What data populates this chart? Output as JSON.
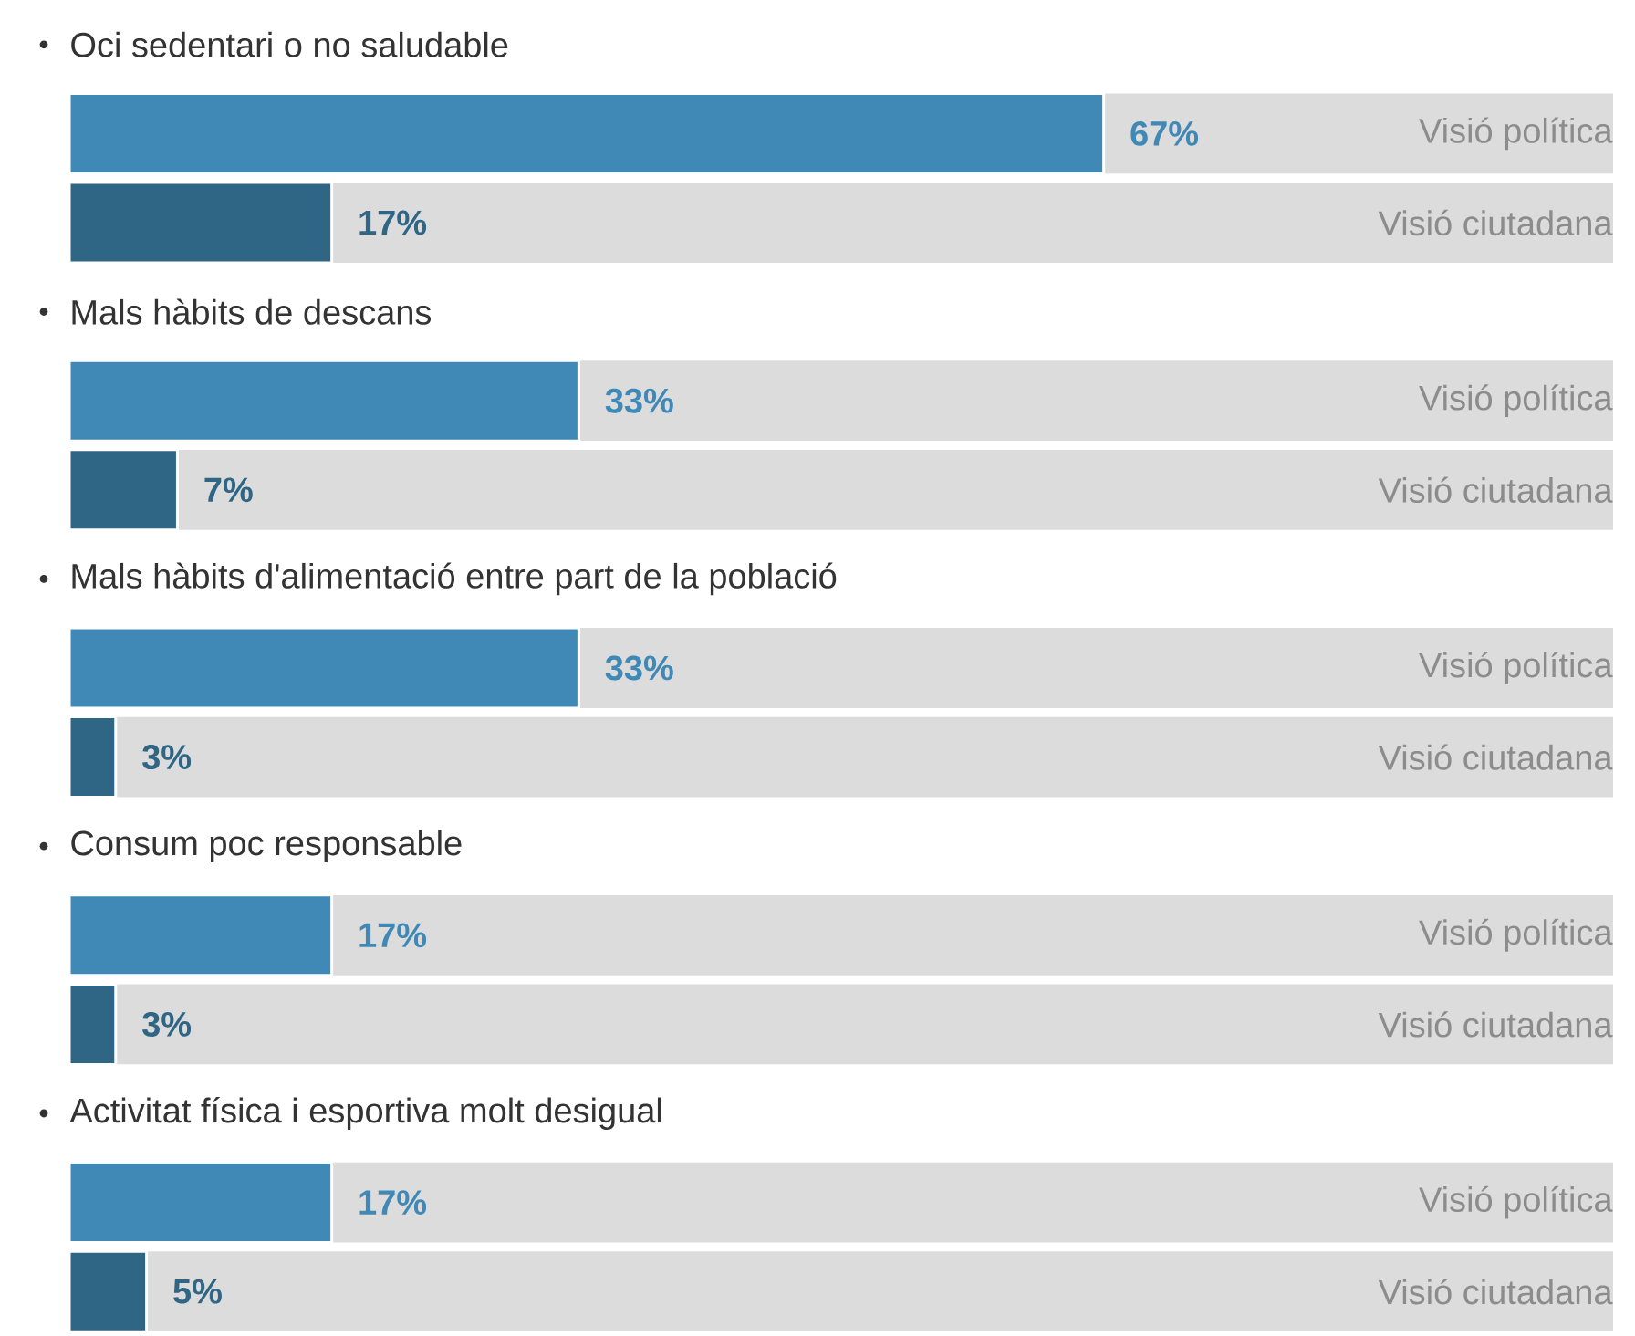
{
  "chart_data": {
    "type": "bar",
    "orientation": "horizontal",
    "xlim": [
      0,
      100
    ],
    "categories": [
      "Oci sedentari o no saludable",
      "Mals hàbits de descans",
      "Mals hàbits d'alimentació entre part de la població",
      "Consum poc responsable",
      "Activitat física i esportiva molt desigual"
    ],
    "series": [
      {
        "name": "Visió política",
        "color": "#4089b6",
        "values": [
          67,
          33,
          33,
          17,
          17
        ],
        "value_labels": [
          "67%",
          "33%",
          "33%",
          "17%",
          "17%"
        ]
      },
      {
        "name": "Visió ciutadana",
        "color": "#2f6585",
        "values": [
          17,
          7,
          3,
          3,
          5
        ],
        "value_labels": [
          "17%",
          "7%",
          "3%",
          "3%",
          "5%"
        ]
      }
    ]
  }
}
